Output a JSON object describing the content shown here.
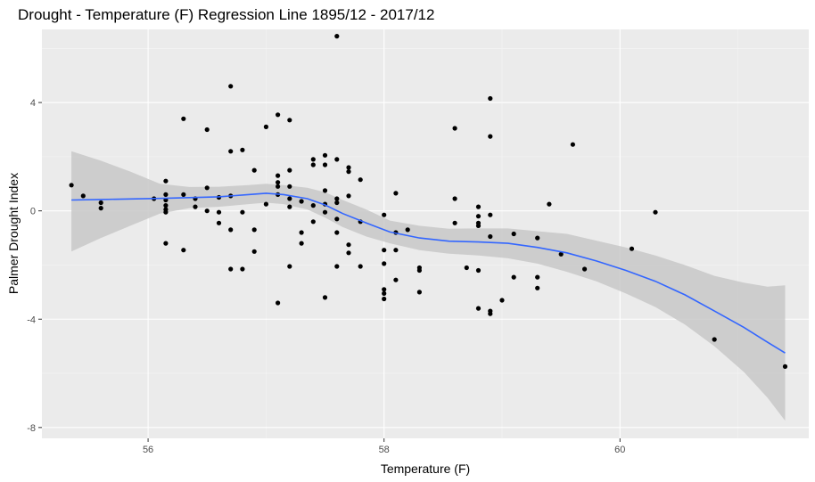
{
  "chart_data": {
    "type": "scatter",
    "title": "Drought - Temperature (F) Regression Line 1895/12 - 2017/12",
    "xlabel": "Temperature (F)",
    "ylabel": "Palmer Drought Index",
    "xlim": [
      55.1,
      61.6
    ],
    "ylim": [
      -8.4,
      6.7
    ],
    "x_ticks": [
      56,
      58,
      60
    ],
    "x_tick_labels": [
      "56",
      "58",
      "60"
    ],
    "y_ticks": [
      -8,
      -4,
      0,
      4
    ],
    "y_tick_labels": [
      "-8",
      "-4",
      "0",
      "4"
    ],
    "grid": true,
    "legend": "none",
    "colors": {
      "panel_background": "#ebebeb",
      "grid_major": "#ffffff",
      "grid_minor": "#f5f5f5",
      "points": "#000000",
      "smooth_line": "#3366ff",
      "confidence_band": "#c8c8c8",
      "tick_label": "#4d4d4d",
      "tick_mark": "#333333"
    },
    "series": [
      {
        "type": "scatter",
        "points": [
          [
            55.35,
            0.95
          ],
          [
            55.45,
            0.55
          ],
          [
            55.6,
            0.3
          ],
          [
            55.6,
            0.1
          ],
          [
            56.05,
            0.45
          ],
          [
            56.15,
            1.1
          ],
          [
            56.15,
            0.6
          ],
          [
            56.15,
            0.4
          ],
          [
            56.15,
            0.2
          ],
          [
            56.15,
            0.05
          ],
          [
            56.15,
            -0.05
          ],
          [
            56.15,
            -1.2
          ],
          [
            56.3,
            3.4
          ],
          [
            56.3,
            0.6
          ],
          [
            56.3,
            -1.45
          ],
          [
            56.4,
            0.45
          ],
          [
            56.4,
            0.15
          ],
          [
            56.5,
            3.0
          ],
          [
            56.5,
            0.85
          ],
          [
            56.5,
            0.0
          ],
          [
            56.6,
            0.5
          ],
          [
            56.6,
            -0.05
          ],
          [
            56.6,
            -0.45
          ],
          [
            56.7,
            4.6
          ],
          [
            56.7,
            2.2
          ],
          [
            56.7,
            0.55
          ],
          [
            56.7,
            -0.7
          ],
          [
            56.7,
            -2.15
          ],
          [
            56.8,
            2.25
          ],
          [
            56.8,
            -0.05
          ],
          [
            56.8,
            -2.15
          ],
          [
            56.9,
            1.5
          ],
          [
            56.9,
            -0.7
          ],
          [
            56.9,
            -1.5
          ],
          [
            57.0,
            3.1
          ],
          [
            57.0,
            0.25
          ],
          [
            57.1,
            3.55
          ],
          [
            57.1,
            1.3
          ],
          [
            57.1,
            1.05
          ],
          [
            57.1,
            0.9
          ],
          [
            57.1,
            0.6
          ],
          [
            57.1,
            -3.4
          ],
          [
            57.2,
            3.35
          ],
          [
            57.2,
            1.5
          ],
          [
            57.2,
            0.9
          ],
          [
            57.2,
            0.45
          ],
          [
            57.2,
            0.15
          ],
          [
            57.2,
            -2.05
          ],
          [
            57.3,
            0.35
          ],
          [
            57.3,
            -0.8
          ],
          [
            57.3,
            -1.2
          ],
          [
            57.4,
            1.9
          ],
          [
            57.4,
            1.7
          ],
          [
            57.4,
            0.2
          ],
          [
            57.4,
            -0.4
          ],
          [
            57.5,
            2.05
          ],
          [
            57.5,
            1.7
          ],
          [
            57.5,
            0.75
          ],
          [
            57.5,
            0.25
          ],
          [
            57.5,
            -0.05
          ],
          [
            57.5,
            -3.2
          ],
          [
            57.6,
            6.45
          ],
          [
            57.6,
            1.9
          ],
          [
            57.6,
            0.45
          ],
          [
            57.6,
            0.3
          ],
          [
            57.6,
            -0.3
          ],
          [
            57.6,
            -0.8
          ],
          [
            57.6,
            -2.05
          ],
          [
            57.7,
            1.6
          ],
          [
            57.7,
            1.45
          ],
          [
            57.7,
            0.55
          ],
          [
            57.7,
            -1.25
          ],
          [
            57.7,
            -1.55
          ],
          [
            57.8,
            1.15
          ],
          [
            57.8,
            -0.4
          ],
          [
            57.8,
            -2.05
          ],
          [
            58.0,
            -0.15
          ],
          [
            58.0,
            -1.45
          ],
          [
            58.0,
            -1.95
          ],
          [
            58.0,
            -2.9
          ],
          [
            58.0,
            -3.05
          ],
          [
            58.0,
            -3.25
          ],
          [
            58.1,
            0.65
          ],
          [
            58.1,
            -0.8
          ],
          [
            58.1,
            -1.45
          ],
          [
            58.1,
            -2.55
          ],
          [
            58.2,
            -0.7
          ],
          [
            58.3,
            -2.1
          ],
          [
            58.3,
            -2.2
          ],
          [
            58.3,
            -3.0
          ],
          [
            58.6,
            3.05
          ],
          [
            58.6,
            0.45
          ],
          [
            58.6,
            -0.45
          ],
          [
            58.7,
            -2.1
          ],
          [
            58.8,
            0.15
          ],
          [
            58.8,
            -0.2
          ],
          [
            58.8,
            -0.45
          ],
          [
            58.8,
            -0.55
          ],
          [
            58.8,
            -2.2
          ],
          [
            58.8,
            -3.6
          ],
          [
            58.9,
            4.15
          ],
          [
            58.9,
            2.75
          ],
          [
            58.9,
            -0.15
          ],
          [
            58.9,
            -0.95
          ],
          [
            58.9,
            -3.7
          ],
          [
            58.9,
            -3.8
          ],
          [
            59.0,
            -3.3
          ],
          [
            59.1,
            -0.85
          ],
          [
            59.1,
            -2.45
          ],
          [
            59.3,
            -1.0
          ],
          [
            59.3,
            -2.45
          ],
          [
            59.3,
            -2.85
          ],
          [
            59.4,
            0.25
          ],
          [
            59.5,
            -1.6
          ],
          [
            59.6,
            2.45
          ],
          [
            59.7,
            -2.15
          ],
          [
            60.1,
            -1.4
          ],
          [
            60.3,
            -0.05
          ],
          [
            60.8,
            -4.75
          ],
          [
            61.4,
            -5.75
          ]
        ]
      },
      {
        "type": "smooth",
        "x": [
          55.35,
          55.6,
          55.85,
          56.1,
          56.35,
          56.6,
          56.85,
          57.0,
          57.15,
          57.35,
          57.5,
          57.65,
          57.85,
          58.05,
          58.3,
          58.55,
          58.8,
          59.05,
          59.3,
          59.55,
          59.8,
          60.05,
          60.3,
          60.55,
          60.8,
          61.05,
          61.25,
          61.4
        ],
        "y": [
          0.4,
          0.42,
          0.44,
          0.46,
          0.49,
          0.52,
          0.6,
          0.65,
          0.6,
          0.45,
          0.22,
          -0.1,
          -0.45,
          -0.78,
          -1.0,
          -1.12,
          -1.15,
          -1.2,
          -1.35,
          -1.55,
          -1.85,
          -2.2,
          -2.6,
          -3.1,
          -3.7,
          -4.3,
          -4.85,
          -5.25
        ],
        "lower": [
          -1.5,
          -1.0,
          -0.55,
          -0.1,
          0.1,
          0.15,
          0.25,
          0.3,
          0.25,
          0.05,
          -0.25,
          -0.6,
          -0.95,
          -1.2,
          -1.45,
          -1.58,
          -1.65,
          -1.75,
          -1.95,
          -2.25,
          -2.6,
          -3.05,
          -3.55,
          -4.2,
          -5.0,
          -5.95,
          -6.9,
          -7.75
        ],
        "upper": [
          2.2,
          1.85,
          1.45,
          1.0,
          0.88,
          0.89,
          0.95,
          1.0,
          0.95,
          0.85,
          0.69,
          0.4,
          0.05,
          -0.36,
          -0.55,
          -0.66,
          -0.65,
          -0.65,
          -0.75,
          -0.85,
          -1.1,
          -1.35,
          -1.65,
          -2.0,
          -2.4,
          -2.65,
          -2.8,
          -2.75
        ]
      }
    ]
  }
}
